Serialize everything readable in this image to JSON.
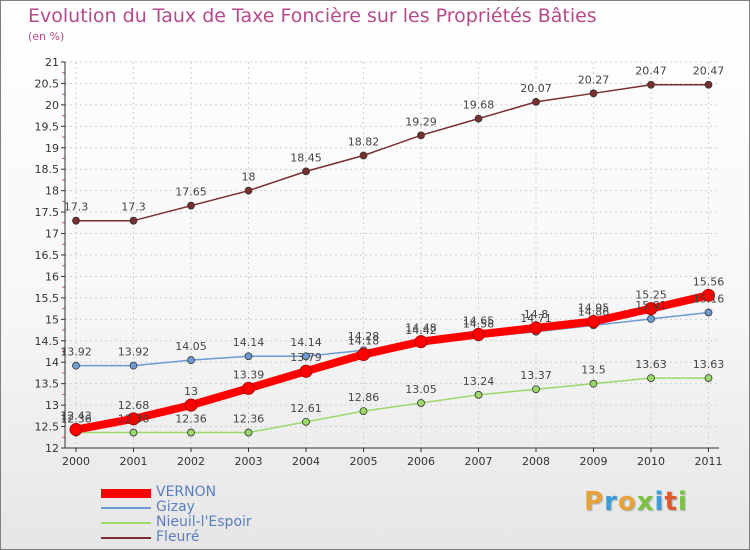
{
  "chart_data": {
    "type": "line",
    "title": "Evolution du Taux de Taxe Foncière sur les Propriétés Bâties",
    "subtitle": "(en %)",
    "xlabel": "",
    "ylabel": "",
    "ylim": [
      12,
      21
    ],
    "yticks": [
      "12",
      "12.5",
      "13",
      "13.5",
      "14",
      "14.5",
      "15",
      "15.5",
      "16",
      "16.5",
      "17",
      "17.5",
      "18",
      "18.5",
      "19",
      "19.5",
      "20",
      "20.5",
      "21"
    ],
    "x": [
      "2000",
      "2001",
      "2002",
      "2003",
      "2004",
      "2005",
      "2006",
      "2007",
      "2008",
      "2009",
      "2010",
      "2011"
    ],
    "legend_position": "bottom-left",
    "series": [
      {
        "name": "VERNON",
        "color": "#ff0000",
        "values": [
          12.43,
          12.68,
          13,
          13.39,
          13.79,
          14.18,
          14.48,
          14.65,
          14.8,
          14.95,
          15.25,
          15.56
        ],
        "labels": [
          "12.43",
          "12.68",
          "13",
          "13.39",
          "13.79",
          "14.18",
          "14.48",
          "14.65",
          "14.8",
          "14.95",
          "15.25",
          "15.56"
        ]
      },
      {
        "name": "Gizay",
        "color": "#6b9bd2",
        "values": [
          13.92,
          13.92,
          14.05,
          14.14,
          14.14,
          14.28,
          14.42,
          14.58,
          14.71,
          14.86,
          15.01,
          15.16
        ],
        "labels": [
          "13.92",
          "13.92",
          "14.05",
          "14.14",
          "14.14",
          "14.28",
          "14.42",
          "14.58",
          "14.71",
          "14.86",
          "15.01",
          "15.16"
        ]
      },
      {
        "name": "Nieuil-l'Espoir",
        "color": "#9cd86a",
        "values": [
          12.36,
          12.36,
          12.36,
          12.36,
          12.61,
          12.86,
          13.05,
          13.24,
          13.37,
          13.5,
          13.63,
          13.63
        ],
        "labels": [
          "12.36",
          "12.36",
          "12.36",
          "12.36",
          "12.61",
          "12.86",
          "13.05",
          "13.24",
          "13.37",
          "13.5",
          "13.63",
          "13.63"
        ]
      },
      {
        "name": "Fleuré",
        "color": "#7a2e2e",
        "values": [
          17.3,
          17.3,
          17.65,
          18,
          18.45,
          18.82,
          19.29,
          19.68,
          20.07,
          20.27,
          20.47,
          20.47
        ],
        "labels": [
          "17.3",
          "17.3",
          "17.65",
          "18",
          "18.45",
          "18.82",
          "19.29",
          "19.68",
          "20.07",
          "20.27",
          "20.47",
          "20.47"
        ]
      }
    ]
  },
  "logo": {
    "letters": [
      "P",
      "r",
      "o",
      "x",
      "i",
      "t",
      "i"
    ],
    "colors": [
      "#e8a23a",
      "#3c9dd8",
      "#e8a23a",
      "#7cc242",
      "#3c9dd8",
      "#e25a2a",
      "#7cc242"
    ]
  }
}
